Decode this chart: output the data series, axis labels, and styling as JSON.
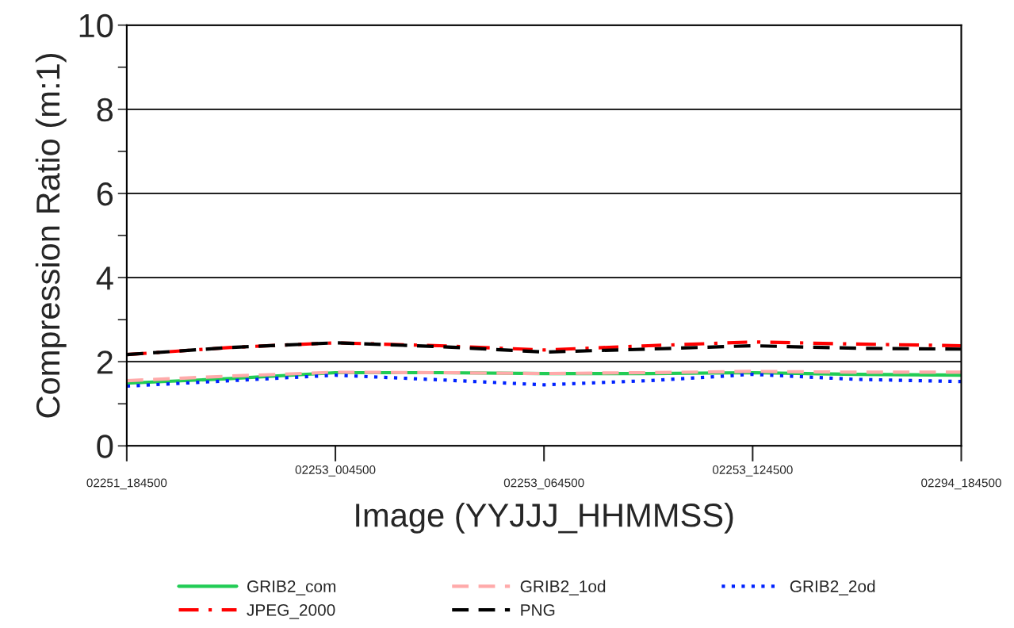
{
  "chart_data": {
    "type": "line",
    "xlabel": "Image (YYJJJ_HHMMSS)",
    "ylabel": "Compression Ratio (m:1)",
    "categories": [
      "02251_184500",
      null,
      "02253_004500",
      null,
      "02253_064500",
      null,
      "02253_124500",
      null,
      "02294_184500"
    ],
    "ylim": [
      0,
      10
    ],
    "yticks": [
      0,
      {
        "value": 1,
        "label": null
      },
      2,
      {
        "value": 3,
        "label": null
      },
      4,
      {
        "value": 5,
        "label": null
      },
      6,
      {
        "value": 7,
        "label": null
      },
      8,
      {
        "value": 9,
        "label": null
      },
      10
    ],
    "grid": "y",
    "legend": "bottom",
    "series": [
      {
        "name": "GRIB2_com",
        "color": "#22cc55",
        "line_style": "solid",
        "values": [
          1.49,
          1.6,
          1.74,
          1.74,
          1.72,
          1.72,
          1.74,
          1.7,
          1.68
        ]
      },
      {
        "name": "GRIB2_1od",
        "color": "#ffaaaa",
        "line_style": "dashed",
        "values": [
          1.55,
          1.66,
          1.75,
          1.74,
          1.72,
          1.74,
          1.77,
          1.75,
          1.75
        ]
      },
      {
        "name": "GRIB2_2od",
        "color": "#0022ff",
        "line_style": "dotted",
        "values": [
          1.42,
          1.55,
          1.68,
          1.57,
          1.45,
          1.55,
          1.7,
          1.58,
          1.53
        ]
      },
      {
        "name": "JPEG_2000",
        "color": "#ff0000",
        "line_style": "dashdot",
        "values": [
          2.17,
          2.34,
          2.45,
          2.38,
          2.28,
          2.38,
          2.47,
          2.42,
          2.38
        ]
      },
      {
        "name": "PNG",
        "color": "#000000",
        "line_style": "dashed",
        "values": [
          2.17,
          2.34,
          2.45,
          2.36,
          2.23,
          2.3,
          2.38,
          2.32,
          2.3
        ]
      }
    ]
  }
}
